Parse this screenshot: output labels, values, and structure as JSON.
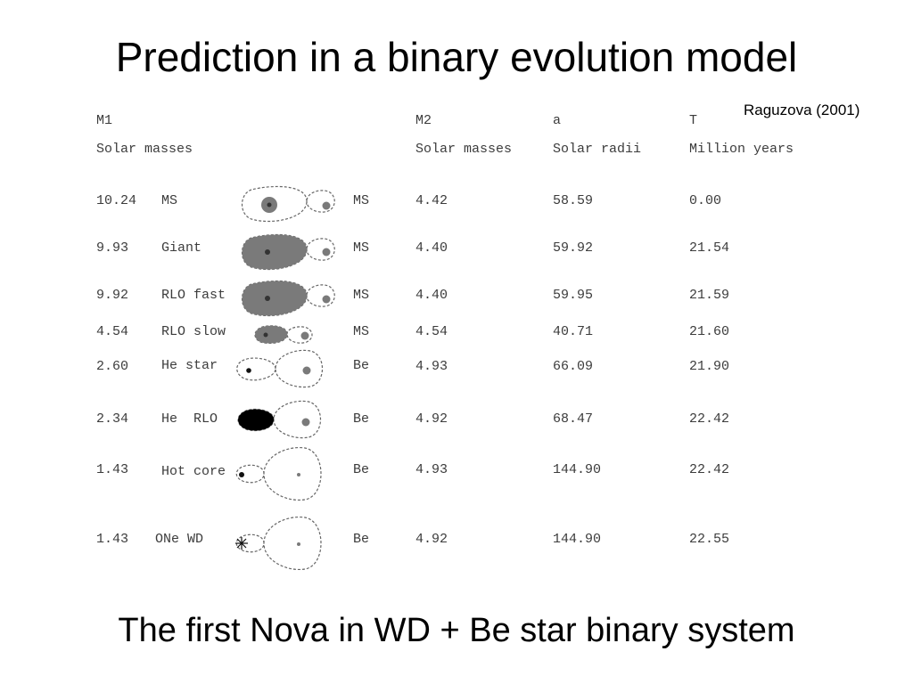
{
  "slide": {
    "title": "Prediction in a binary evolution model",
    "citation": "Raguzova (2001)",
    "caption": "The first Nova in WD + Be star binary system"
  },
  "table": {
    "headers": {
      "m1": "M1",
      "m1_unit": "Solar masses",
      "m2": "M2",
      "m2_unit": "Solar masses",
      "a": "a",
      "a_unit": "Solar radii",
      "t": "T",
      "t_unit": "Million years"
    },
    "rows": [
      {
        "m1": "10.24",
        "stage": "MS",
        "companion": "MS",
        "m2": "4.42",
        "a": "58.59",
        "t": "0.00"
      },
      {
        "m1": "9.93",
        "stage": "Giant",
        "companion": "MS",
        "m2": "4.40",
        "a": "59.92",
        "t": "21.54"
      },
      {
        "m1": "9.92",
        "stage": "RLO fast",
        "companion": "MS",
        "m2": "4.40",
        "a": "59.95",
        "t": "21.59"
      },
      {
        "m1": "4.54",
        "stage": "RLO slow",
        "companion": "MS",
        "m2": "4.54",
        "a": "40.71",
        "t": "21.60"
      },
      {
        "m1": "2.60",
        "stage": "He star",
        "companion": "Be",
        "m2": "4.93",
        "a": "66.09",
        "t": "21.90"
      },
      {
        "m1": "2.34",
        "stage": "He  RLO",
        "companion": "Be",
        "m2": "4.92",
        "a": "68.47",
        "t": "22.42"
      },
      {
        "m1": "1.43",
        "stage": "Hot core",
        "companion": "Be",
        "m2": "4.93",
        "a": "144.90",
        "t": "22.42"
      },
      {
        "m1": "1.43",
        "stage": "ONe WD",
        "companion": "Be",
        "m2": "4.92",
        "a": "144.90",
        "t": "22.55"
      }
    ]
  },
  "colors": {
    "text": "#3c3c3c",
    "lobe_line": "#666666",
    "star_fill_grey": "#7a7a7a",
    "star_fill_dark": "#000000"
  }
}
